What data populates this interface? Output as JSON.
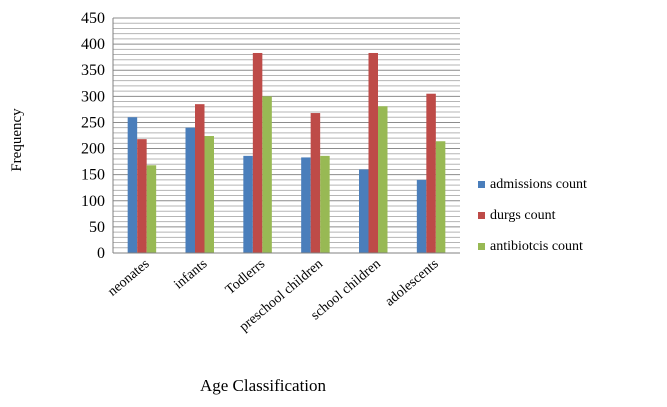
{
  "chart_data": {
    "type": "bar",
    "title": "",
    "xlabel": "Age Classification",
    "ylabel": "Frequency",
    "ylim": [
      0,
      450
    ],
    "yticks": [
      0,
      50,
      100,
      150,
      200,
      250,
      300,
      350,
      400,
      450
    ],
    "grid": true,
    "legend_position": "right",
    "categories": [
      "neonates",
      "infants",
      "Todlerrs",
      "preschool children",
      "school children",
      "adolescents"
    ],
    "series": [
      {
        "name": "admissions count",
        "color": "#4a7ebb",
        "values": [
          260,
          240,
          186,
          183,
          160,
          140
        ]
      },
      {
        "name": "durgs count",
        "color": "#be4b48",
        "values": [
          218,
          285,
          383,
          268,
          383,
          305
        ]
      },
      {
        "name": "antibiotcis count",
        "color": "#98b954",
        "values": [
          168,
          224,
          300,
          186,
          281,
          214
        ]
      }
    ]
  }
}
